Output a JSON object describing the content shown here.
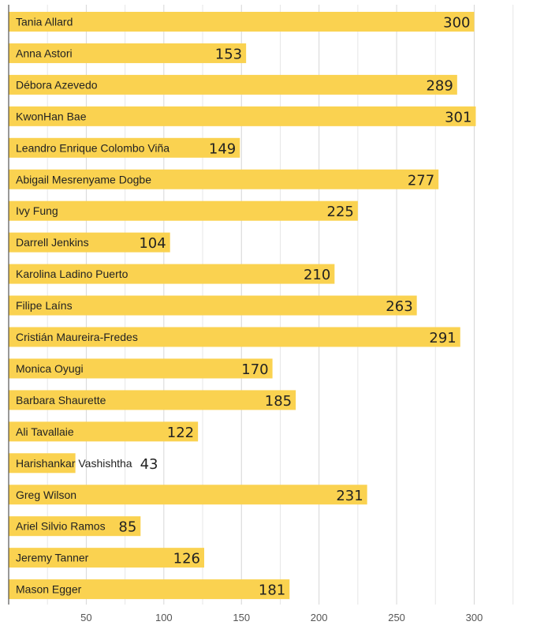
{
  "chart_data": {
    "type": "bar",
    "orientation": "horizontal",
    "categories": [
      "Tania Allard",
      "Anna Astori",
      "Débora Azevedo",
      "KwonHan Bae",
      "Leandro Enrique Colombo Viña",
      "Abigail Mesrenyame Dogbe",
      "Ivy Fung",
      "Darrell Jenkins",
      "Karolina Ladino Puerto",
      "Filipe Laíns",
      "Cristián Maureira-Fredes",
      "Monica Oyugi",
      "Barbara Shaurette",
      "Ali Tavallaie",
      "Harishankar Vashishtha",
      "Greg Wilson",
      "Ariel Silvio Ramos",
      "Jeremy Tanner",
      "Mason Egger"
    ],
    "values": [
      300,
      153,
      289,
      301,
      149,
      277,
      225,
      104,
      210,
      263,
      291,
      170,
      185,
      122,
      43,
      231,
      85,
      126,
      181
    ],
    "x_ticks": [
      50,
      100,
      150,
      200,
      250,
      300
    ],
    "xlim": [
      0,
      325
    ],
    "grid": true,
    "bar_color": "#fad250",
    "gridline_color": "#e6e6e6"
  }
}
